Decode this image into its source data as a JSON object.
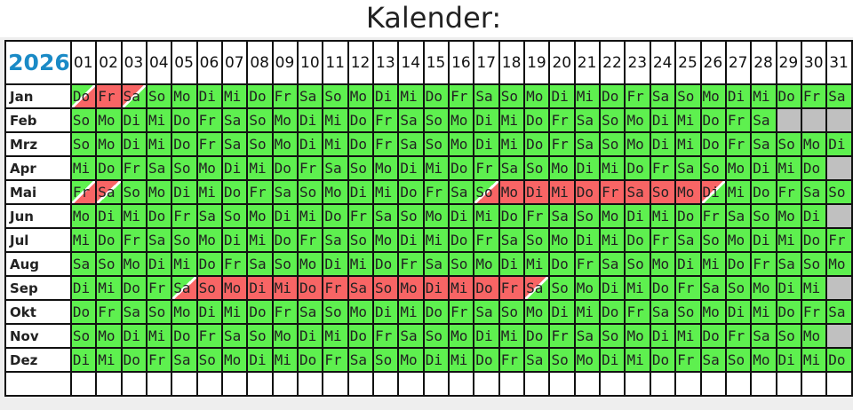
{
  "title": "Kalender:",
  "year": "2026",
  "day_headers": [
    "01",
    "02",
    "03",
    "04",
    "05",
    "06",
    "07",
    "08",
    "09",
    "10",
    "11",
    "12",
    "13",
    "14",
    "15",
    "16",
    "17",
    "18",
    "19",
    "20",
    "21",
    "22",
    "23",
    "24",
    "25",
    "26",
    "27",
    "28",
    "29",
    "30",
    "31"
  ],
  "colors": {
    "free": "#5ef04f",
    "vacation": "#f86565",
    "no_day": "#c0c0c0",
    "year": "#1a8ac6"
  },
  "months": [
    {
      "name": "Jan",
      "days": [
        "Do",
        "Fr",
        "Sa",
        "So",
        "Mo",
        "Di",
        "Mi",
        "Do",
        "Fr",
        "Sa",
        "So",
        "Mo",
        "Di",
        "Mi",
        "Do",
        "Fr",
        "Sa",
        "So",
        "Mo",
        "Di",
        "Mi",
        "Do",
        "Fr",
        "Sa",
        "So",
        "Mo",
        "Di",
        "Mi",
        "Do",
        "Fr",
        "Sa"
      ]
    },
    {
      "name": "Feb",
      "days": [
        "So",
        "Mo",
        "Di",
        "Mi",
        "Do",
        "Fr",
        "Sa",
        "So",
        "Mo",
        "Di",
        "Mi",
        "Do",
        "Fr",
        "Sa",
        "So",
        "Mo",
        "Di",
        "Mi",
        "Do",
        "Fr",
        "Sa",
        "So",
        "Mo",
        "Di",
        "Mi",
        "Do",
        "Fr",
        "Sa"
      ]
    },
    {
      "name": "Mrz",
      "days": [
        "So",
        "Mo",
        "Di",
        "Mi",
        "Do",
        "Fr",
        "Sa",
        "So",
        "Mo",
        "Di",
        "Mi",
        "Do",
        "Fr",
        "Sa",
        "So",
        "Mo",
        "Di",
        "Mi",
        "Do",
        "Fr",
        "Sa",
        "So",
        "Mo",
        "Di",
        "Mi",
        "Do",
        "Fr",
        "Sa",
        "So",
        "Mo",
        "Di"
      ]
    },
    {
      "name": "Apr",
      "days": [
        "Mi",
        "Do",
        "Fr",
        "Sa",
        "So",
        "Mo",
        "Di",
        "Mi",
        "Do",
        "Fr",
        "Sa",
        "So",
        "Mo",
        "Di",
        "Mi",
        "Do",
        "Fr",
        "Sa",
        "So",
        "Mo",
        "Di",
        "Mi",
        "Do",
        "Fr",
        "Sa",
        "So",
        "Mo",
        "Di",
        "Mi",
        "Do"
      ]
    },
    {
      "name": "Mai",
      "days": [
        "Fr",
        "Sa",
        "So",
        "Mo",
        "Di",
        "Mi",
        "Do",
        "Fr",
        "Sa",
        "So",
        "Mo",
        "Di",
        "Mi",
        "Do",
        "Fr",
        "Sa",
        "So",
        "Mo",
        "Di",
        "Mi",
        "Do",
        "Fr",
        "Sa",
        "So",
        "Mo",
        "Di",
        "Mi",
        "Do",
        "Fr",
        "Sa",
        "So"
      ]
    },
    {
      "name": "Jun",
      "days": [
        "Mo",
        "Di",
        "Mi",
        "Do",
        "Fr",
        "Sa",
        "So",
        "Mo",
        "Di",
        "Mi",
        "Do",
        "Fr",
        "Sa",
        "So",
        "Mo",
        "Di",
        "Mi",
        "Do",
        "Fr",
        "Sa",
        "So",
        "Mo",
        "Di",
        "Mi",
        "Do",
        "Fr",
        "Sa",
        "So",
        "Mo",
        "Di"
      ]
    },
    {
      "name": "Jul",
      "days": [
        "Mi",
        "Do",
        "Fr",
        "Sa",
        "So",
        "Mo",
        "Di",
        "Mi",
        "Do",
        "Fr",
        "Sa",
        "So",
        "Mo",
        "Di",
        "Mi",
        "Do",
        "Fr",
        "Sa",
        "So",
        "Mo",
        "Di",
        "Mi",
        "Do",
        "Fr",
        "Sa",
        "So",
        "Mo",
        "Di",
        "Mi",
        "Do",
        "Fr"
      ]
    },
    {
      "name": "Aug",
      "days": [
        "Sa",
        "So",
        "Mo",
        "Di",
        "Mi",
        "Do",
        "Fr",
        "Sa",
        "So",
        "Mo",
        "Di",
        "Mi",
        "Do",
        "Fr",
        "Sa",
        "So",
        "Mo",
        "Di",
        "Mi",
        "Do",
        "Fr",
        "Sa",
        "So",
        "Mo",
        "Di",
        "Mi",
        "Do",
        "Fr",
        "Sa",
        "So",
        "Mo"
      ]
    },
    {
      "name": "Sep",
      "days": [
        "Di",
        "Mi",
        "Do",
        "Fr",
        "Sa",
        "So",
        "Mo",
        "Di",
        "Mi",
        "Do",
        "Fr",
        "Sa",
        "So",
        "Mo",
        "Di",
        "Mi",
        "Do",
        "Fr",
        "Sa",
        "So",
        "Mo",
        "Di",
        "Mi",
        "Do",
        "Fr",
        "Sa",
        "So",
        "Mo",
        "Di",
        "Mi"
      ]
    },
    {
      "name": "Okt",
      "days": [
        "Do",
        "Fr",
        "Sa",
        "So",
        "Mo",
        "Di",
        "Mi",
        "Do",
        "Fr",
        "Sa",
        "So",
        "Mo",
        "Di",
        "Mi",
        "Do",
        "Fr",
        "Sa",
        "So",
        "Mo",
        "Di",
        "Mi",
        "Do",
        "Fr",
        "Sa",
        "So",
        "Mo",
        "Di",
        "Mi",
        "Do",
        "Fr",
        "Sa"
      ]
    },
    {
      "name": "Nov",
      "days": [
        "So",
        "Mo",
        "Di",
        "Mi",
        "Do",
        "Fr",
        "Sa",
        "So",
        "Mo",
        "Di",
        "Mi",
        "Do",
        "Fr",
        "Sa",
        "So",
        "Mo",
        "Di",
        "Mi",
        "Do",
        "Fr",
        "Sa",
        "So",
        "Mo",
        "Di",
        "Mi",
        "Do",
        "Fr",
        "Sa",
        "So",
        "Mo"
      ]
    },
    {
      "name": "Dez",
      "days": [
        "Di",
        "Mi",
        "Do",
        "Fr",
        "Sa",
        "So",
        "Mo",
        "Di",
        "Mi",
        "Do",
        "Fr",
        "Sa",
        "So",
        "Mo",
        "Di",
        "Mi",
        "Do",
        "Fr",
        "Sa",
        "So",
        "Mo",
        "Di",
        "Mi",
        "Do",
        "Fr",
        "Sa",
        "So",
        "Mo",
        "Di",
        "Mi",
        "Do"
      ]
    }
  ],
  "vacations": [
    {
      "month": "Jan",
      "from": 1,
      "to": 3
    },
    {
      "month": "Mai",
      "from": 1,
      "to": 2
    },
    {
      "month": "Mai",
      "from": 17,
      "to": 26
    },
    {
      "month": "Sep",
      "from": 5,
      "to": 19
    }
  ]
}
